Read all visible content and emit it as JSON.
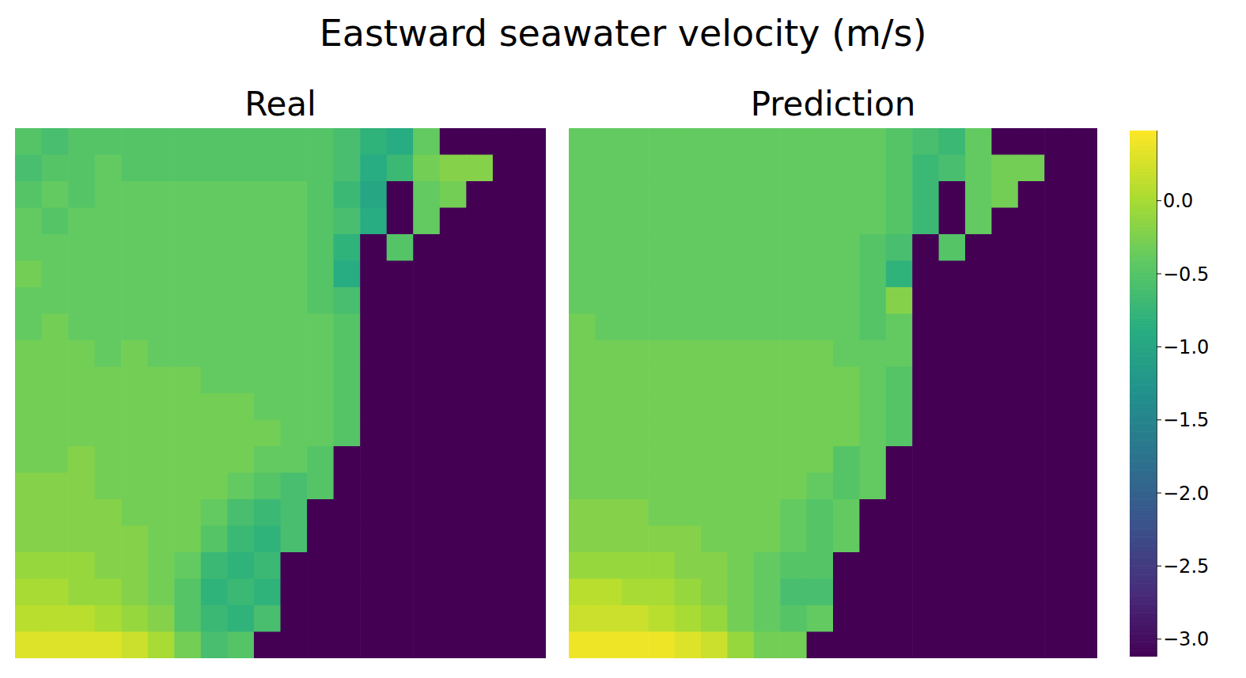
{
  "title": "Eastward seawater velocity (m/s)",
  "colorbar": {
    "range": [
      -3.12,
      0.48
    ],
    "ticks": [
      {
        "value": 0,
        "label": "0.0"
      },
      {
        "value": -0.5,
        "label": "−0.5"
      },
      {
        "value": -1.0,
        "label": "−1.0"
      },
      {
        "value": -1.5,
        "label": "−1.5"
      },
      {
        "value": -2.0,
        "label": "−2.0"
      },
      {
        "value": -2.5,
        "label": "−2.5"
      },
      {
        "value": -3.0,
        "label": "−3.0"
      }
    ]
  },
  "chart_data": [
    {
      "type": "heatmap",
      "title": "Real",
      "tick_labels": false,
      "cells": [
        [
          -0.5,
          -0.6,
          -0.5,
          -0.5,
          -0.5,
          -0.5,
          -0.5,
          -0.5,
          -0.5,
          -0.5,
          -0.5,
          -0.5,
          -0.6,
          -0.8,
          -0.9,
          -0.4,
          -3.12,
          -3.12,
          -3.12,
          -3.12
        ],
        [
          -0.6,
          -0.5,
          -0.5,
          -0.4,
          -0.5,
          -0.5,
          -0.5,
          -0.5,
          -0.5,
          -0.5,
          -0.5,
          -0.5,
          -0.6,
          -0.9,
          -0.7,
          -0.3,
          -0.2,
          -0.2,
          -3.12,
          -3.12
        ],
        [
          -0.5,
          -0.4,
          -0.5,
          -0.4,
          -0.4,
          -0.4,
          -0.4,
          -0.4,
          -0.4,
          -0.4,
          -0.4,
          -0.5,
          -0.7,
          -1.0,
          -3.12,
          -0.4,
          -0.3,
          -3.12,
          -3.12,
          -3.12
        ],
        [
          -0.4,
          -0.5,
          -0.4,
          -0.4,
          -0.4,
          -0.4,
          -0.4,
          -0.4,
          -0.4,
          -0.4,
          -0.4,
          -0.5,
          -0.6,
          -0.9,
          -3.12,
          -0.4,
          -3.12,
          -3.12,
          -3.12,
          -3.12
        ],
        [
          -0.4,
          -0.4,
          -0.4,
          -0.4,
          -0.4,
          -0.4,
          -0.4,
          -0.4,
          -0.4,
          -0.4,
          -0.4,
          -0.5,
          -0.8,
          -3.12,
          -0.5,
          -3.12,
          -3.12,
          -3.12,
          -3.12,
          -3.12
        ],
        [
          -0.3,
          -0.4,
          -0.4,
          -0.4,
          -0.4,
          -0.4,
          -0.4,
          -0.4,
          -0.4,
          -0.4,
          -0.4,
          -0.5,
          -0.9,
          -3.12,
          -3.12,
          -3.12,
          -3.12,
          -3.12,
          -3.12,
          -3.12
        ],
        [
          -0.4,
          -0.4,
          -0.4,
          -0.4,
          -0.4,
          -0.4,
          -0.4,
          -0.4,
          -0.4,
          -0.4,
          -0.4,
          -0.5,
          -0.6,
          -3.12,
          -3.12,
          -3.12,
          -3.12,
          -3.12,
          -3.12,
          -3.12
        ],
        [
          -0.4,
          -0.3,
          -0.4,
          -0.4,
          -0.4,
          -0.4,
          -0.4,
          -0.4,
          -0.4,
          -0.4,
          -0.4,
          -0.4,
          -0.5,
          -3.12,
          -3.12,
          -3.12,
          -3.12,
          -3.12,
          -3.12,
          -3.12
        ],
        [
          -0.3,
          -0.3,
          -0.3,
          -0.4,
          -0.3,
          -0.4,
          -0.4,
          -0.4,
          -0.4,
          -0.4,
          -0.4,
          -0.4,
          -0.5,
          -3.12,
          -3.12,
          -3.12,
          -3.12,
          -3.12,
          -3.12,
          -3.12
        ],
        [
          -0.3,
          -0.3,
          -0.3,
          -0.3,
          -0.3,
          -0.3,
          -0.3,
          -0.4,
          -0.4,
          -0.4,
          -0.4,
          -0.4,
          -0.5,
          -3.12,
          -3.12,
          -3.12,
          -3.12,
          -3.12,
          -3.12,
          -3.12
        ],
        [
          -0.3,
          -0.3,
          -0.3,
          -0.3,
          -0.3,
          -0.3,
          -0.3,
          -0.3,
          -0.3,
          -0.4,
          -0.4,
          -0.4,
          -0.5,
          -3.12,
          -3.12,
          -3.12,
          -3.12,
          -3.12,
          -3.12,
          -3.12
        ],
        [
          -0.3,
          -0.3,
          -0.3,
          -0.3,
          -0.3,
          -0.3,
          -0.3,
          -0.3,
          -0.3,
          -0.3,
          -0.4,
          -0.4,
          -0.5,
          -3.12,
          -3.12,
          -3.12,
          -3.12,
          -3.12,
          -3.12,
          -3.12
        ],
        [
          -0.3,
          -0.3,
          -0.2,
          -0.3,
          -0.3,
          -0.3,
          -0.3,
          -0.3,
          -0.3,
          -0.4,
          -0.4,
          -0.5,
          -3.12,
          -3.12,
          -3.12,
          -3.12,
          -3.12,
          -3.12,
          -3.12,
          -3.12
        ],
        [
          -0.2,
          -0.2,
          -0.2,
          -0.3,
          -0.3,
          -0.3,
          -0.3,
          -0.3,
          -0.4,
          -0.5,
          -0.6,
          -0.5,
          -3.12,
          -3.12,
          -3.12,
          -3.12,
          -3.12,
          -3.12,
          -3.12,
          -3.12
        ],
        [
          -0.2,
          -0.2,
          -0.2,
          -0.2,
          -0.3,
          -0.3,
          -0.3,
          -0.4,
          -0.6,
          -0.7,
          -0.6,
          -3.12,
          -3.12,
          -3.12,
          -3.12,
          -3.12,
          -3.12,
          -3.12,
          -3.12,
          -3.12
        ],
        [
          -0.2,
          -0.2,
          -0.2,
          -0.2,
          -0.2,
          -0.3,
          -0.3,
          -0.5,
          -0.7,
          -0.8,
          -0.6,
          -3.12,
          -3.12,
          -3.12,
          -3.12,
          -3.12,
          -3.12,
          -3.12,
          -3.12,
          -3.12
        ],
        [
          -0.1,
          -0.1,
          -0.1,
          -0.2,
          -0.2,
          -0.3,
          -0.4,
          -0.7,
          -0.8,
          -0.7,
          -3.12,
          -3.12,
          -3.12,
          -3.12,
          -3.12,
          -3.12,
          -3.12,
          -3.12,
          -3.12,
          -3.12
        ],
        [
          0.0,
          0.0,
          -0.1,
          -0.1,
          -0.2,
          -0.3,
          -0.5,
          -0.8,
          -0.7,
          -0.8,
          -3.12,
          -3.12,
          -3.12,
          -3.12,
          -3.12,
          -3.12,
          -3.12,
          -3.12,
          -3.12,
          -3.12
        ],
        [
          0.1,
          0.1,
          0.1,
          0.0,
          -0.1,
          -0.2,
          -0.5,
          -0.7,
          -0.8,
          -0.6,
          -3.12,
          -3.12,
          -3.12,
          -3.12,
          -3.12,
          -3.12,
          -3.12,
          -3.12,
          -3.12,
          -3.12
        ],
        [
          0.3,
          0.3,
          0.3,
          0.3,
          0.2,
          0.0,
          -0.3,
          -0.6,
          -0.5,
          -3.12,
          -3.12,
          -3.12,
          -3.12,
          -3.12,
          -3.12,
          -3.12,
          -3.12,
          -3.12,
          -3.12,
          -3.12
        ]
      ]
    },
    {
      "type": "heatmap",
      "title": "Prediction",
      "tick_labels": false,
      "cells": [
        [
          -0.4,
          -0.4,
          -0.4,
          -0.4,
          -0.4,
          -0.4,
          -0.4,
          -0.4,
          -0.4,
          -0.4,
          -0.4,
          -0.4,
          -0.5,
          -0.6,
          -0.7,
          -0.4,
          -3.12,
          -3.12,
          -3.12,
          -3.12
        ],
        [
          -0.4,
          -0.4,
          -0.4,
          -0.4,
          -0.4,
          -0.4,
          -0.4,
          -0.4,
          -0.4,
          -0.4,
          -0.4,
          -0.4,
          -0.5,
          -0.7,
          -0.6,
          -0.4,
          -0.3,
          -0.3,
          -3.12,
          -3.12
        ],
        [
          -0.4,
          -0.4,
          -0.4,
          -0.4,
          -0.4,
          -0.4,
          -0.4,
          -0.4,
          -0.4,
          -0.4,
          -0.4,
          -0.4,
          -0.5,
          -0.7,
          -3.12,
          -0.4,
          -0.3,
          -3.12,
          -3.12,
          -3.12
        ],
        [
          -0.4,
          -0.4,
          -0.4,
          -0.4,
          -0.4,
          -0.4,
          -0.4,
          -0.4,
          -0.4,
          -0.4,
          -0.4,
          -0.4,
          -0.5,
          -0.7,
          -3.12,
          -0.4,
          -3.12,
          -3.12,
          -3.12,
          -3.12
        ],
        [
          -0.4,
          -0.4,
          -0.4,
          -0.4,
          -0.4,
          -0.4,
          -0.4,
          -0.4,
          -0.4,
          -0.4,
          -0.4,
          -0.5,
          -0.6,
          -3.12,
          -0.5,
          -3.12,
          -3.12,
          -3.12,
          -3.12,
          -3.12
        ],
        [
          -0.4,
          -0.4,
          -0.4,
          -0.4,
          -0.4,
          -0.4,
          -0.4,
          -0.4,
          -0.4,
          -0.4,
          -0.4,
          -0.5,
          -0.8,
          -3.12,
          -3.12,
          -3.12,
          -3.12,
          -3.12,
          -3.12,
          -3.12
        ],
        [
          -0.4,
          -0.4,
          -0.4,
          -0.4,
          -0.4,
          -0.4,
          -0.4,
          -0.4,
          -0.4,
          -0.4,
          -0.4,
          -0.5,
          -0.2,
          -3.12,
          -3.12,
          -3.12,
          -3.12,
          -3.12,
          -3.12,
          -3.12
        ],
        [
          -0.3,
          -0.4,
          -0.4,
          -0.4,
          -0.4,
          -0.4,
          -0.4,
          -0.4,
          -0.4,
          -0.4,
          -0.4,
          -0.5,
          -0.4,
          -3.12,
          -3.12,
          -3.12,
          -3.12,
          -3.12,
          -3.12,
          -3.12
        ],
        [
          -0.3,
          -0.3,
          -0.3,
          -0.3,
          -0.3,
          -0.3,
          -0.3,
          -0.3,
          -0.3,
          -0.3,
          -0.4,
          -0.4,
          -0.4,
          -3.12,
          -3.12,
          -3.12,
          -3.12,
          -3.12,
          -3.12,
          -3.12
        ],
        [
          -0.3,
          -0.3,
          -0.3,
          -0.3,
          -0.3,
          -0.3,
          -0.3,
          -0.3,
          -0.3,
          -0.3,
          -0.3,
          -0.4,
          -0.5,
          -3.12,
          -3.12,
          -3.12,
          -3.12,
          -3.12,
          -3.12,
          -3.12
        ],
        [
          -0.3,
          -0.3,
          -0.3,
          -0.3,
          -0.3,
          -0.3,
          -0.3,
          -0.3,
          -0.3,
          -0.3,
          -0.3,
          -0.4,
          -0.5,
          -3.12,
          -3.12,
          -3.12,
          -3.12,
          -3.12,
          -3.12,
          -3.12
        ],
        [
          -0.3,
          -0.3,
          -0.3,
          -0.3,
          -0.3,
          -0.3,
          -0.3,
          -0.3,
          -0.3,
          -0.3,
          -0.3,
          -0.4,
          -0.5,
          -3.12,
          -3.12,
          -3.12,
          -3.12,
          -3.12,
          -3.12,
          -3.12
        ],
        [
          -0.3,
          -0.3,
          -0.3,
          -0.3,
          -0.3,
          -0.3,
          -0.3,
          -0.3,
          -0.3,
          -0.3,
          -0.5,
          -0.4,
          -3.12,
          -3.12,
          -3.12,
          -3.12,
          -3.12,
          -3.12,
          -3.12,
          -3.12
        ],
        [
          -0.3,
          -0.3,
          -0.3,
          -0.3,
          -0.3,
          -0.3,
          -0.3,
          -0.3,
          -0.3,
          -0.4,
          -0.5,
          -0.4,
          -3.12,
          -3.12,
          -3.12,
          -3.12,
          -3.12,
          -3.12,
          -3.12,
          -3.12
        ],
        [
          -0.2,
          -0.2,
          -0.2,
          -0.3,
          -0.3,
          -0.3,
          -0.3,
          -0.3,
          -0.4,
          -0.5,
          -0.4,
          -3.12,
          -3.12,
          -3.12,
          -3.12,
          -3.12,
          -3.12,
          -3.12,
          -3.12,
          -3.12
        ],
        [
          -0.2,
          -0.2,
          -0.2,
          -0.2,
          -0.2,
          -0.3,
          -0.3,
          -0.3,
          -0.4,
          -0.5,
          -0.4,
          -3.12,
          -3.12,
          -3.12,
          -3.12,
          -3.12,
          -3.12,
          -3.12,
          -3.12,
          -3.12
        ],
        [
          -0.1,
          -0.1,
          -0.1,
          -0.1,
          -0.2,
          -0.2,
          -0.3,
          -0.4,
          -0.5,
          -0.5,
          -3.12,
          -3.12,
          -3.12,
          -3.12,
          -3.12,
          -3.12,
          -3.12,
          -3.12,
          -3.12,
          -3.12
        ],
        [
          0.1,
          0.1,
          0.0,
          0.0,
          -0.1,
          -0.2,
          -0.3,
          -0.4,
          -0.6,
          -0.6,
          -3.12,
          -3.12,
          -3.12,
          -3.12,
          -3.12,
          -3.12,
          -3.12,
          -3.12,
          -3.12,
          -3.12
        ],
        [
          0.2,
          0.2,
          0.2,
          0.1,
          0.0,
          -0.1,
          -0.3,
          -0.4,
          -0.5,
          -0.4,
          -3.12,
          -3.12,
          -3.12,
          -3.12,
          -3.12,
          -3.12,
          -3.12,
          -3.12,
          -3.12,
          -3.12
        ],
        [
          0.4,
          0.4,
          0.4,
          0.4,
          0.3,
          0.2,
          -0.1,
          -0.3,
          -0.3,
          -3.12,
          -3.12,
          -3.12,
          -3.12,
          -3.12,
          -3.12,
          -3.12,
          -3.12,
          -3.12,
          -3.12,
          -3.12
        ]
      ]
    }
  ]
}
